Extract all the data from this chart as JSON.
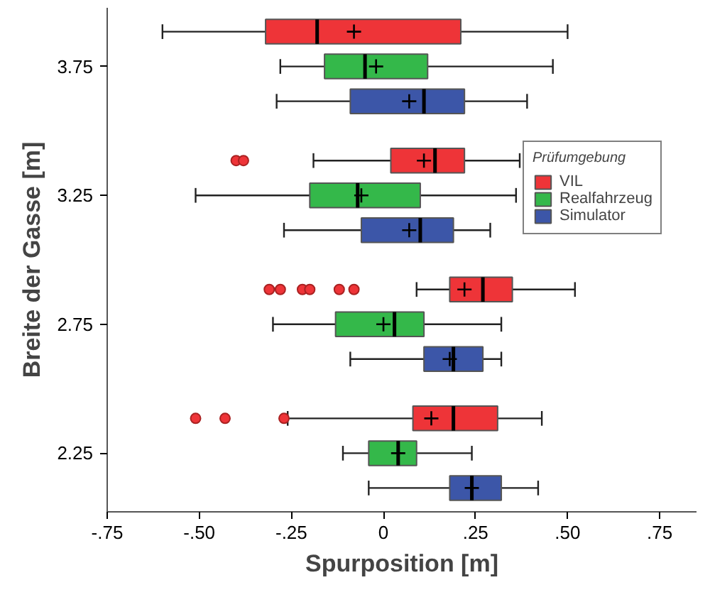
{
  "chart_data": {
    "type": "box",
    "orientation": "horizontal",
    "xlabel": "Spurposition [m]",
    "ylabel": "Breite der Gasse [m]",
    "legend_title": "Prüfumgebung",
    "legend": "right",
    "grid": false,
    "categories": [
      "3.75",
      "3.25",
      "2.75",
      "2.25"
    ],
    "xlim": [
      -0.75,
      0.85
    ],
    "xticks": [
      {
        "value": -0.75,
        "label": "-.75"
      },
      {
        "value": -0.5,
        "label": "-.50"
      },
      {
        "value": -0.25,
        "label": "-.25"
      },
      0,
      {
        "value": 0.25,
        "label": ".25"
      },
      {
        "value": 0.5,
        "label": ".50"
      },
      {
        "value": 0.75,
        "label": ".75"
      }
    ],
    "series": [
      {
        "name": "VIL",
        "color": "#ee3438",
        "boxes": [
          {
            "low": -0.6,
            "q1": -0.32,
            "median": -0.18,
            "q3": 0.21,
            "high": 0.5,
            "mean": -0.08
          },
          {
            "low": -0.19,
            "q1": 0.02,
            "median": 0.14,
            "q3": 0.22,
            "high": 0.37,
            "mean": 0.11,
            "outliers": [
              -0.4,
              -0.38
            ]
          },
          {
            "low": 0.09,
            "q1": 0.18,
            "median": 0.27,
            "q3": 0.35,
            "high": 0.52,
            "mean": 0.22,
            "outliers": [
              -0.31,
              -0.28,
              -0.22,
              -0.2,
              -0.12,
              -0.08
            ]
          },
          {
            "low": -0.26,
            "q1": 0.08,
            "median": 0.19,
            "q3": 0.31,
            "high": 0.43,
            "mean": 0.13,
            "outliers": [
              -0.51,
              -0.43,
              -0.27
            ]
          }
        ]
      },
      {
        "name": "Realfahrzeug",
        "color": "#34b84a",
        "boxes": [
          {
            "low": -0.28,
            "q1": -0.16,
            "median": -0.05,
            "q3": 0.12,
            "high": 0.46,
            "mean": -0.02
          },
          {
            "low": -0.51,
            "q1": -0.2,
            "median": -0.07,
            "q3": 0.1,
            "high": 0.36,
            "mean": -0.06
          },
          {
            "low": -0.3,
            "q1": -0.13,
            "median": 0.03,
            "q3": 0.11,
            "high": 0.32,
            "mean": 0.0
          },
          {
            "low": -0.11,
            "q1": -0.04,
            "median": 0.04,
            "q3": 0.09,
            "high": 0.24,
            "mean": 0.04
          }
        ]
      },
      {
        "name": "Simulator",
        "color": "#3c56a8",
        "boxes": [
          {
            "low": -0.29,
            "q1": -0.09,
            "median": 0.11,
            "q3": 0.22,
            "high": 0.39,
            "mean": 0.07
          },
          {
            "low": -0.27,
            "q1": -0.06,
            "median": 0.1,
            "q3": 0.19,
            "high": 0.29,
            "mean": 0.07
          },
          {
            "low": -0.09,
            "q1": 0.11,
            "median": 0.19,
            "q3": 0.27,
            "high": 0.32,
            "mean": 0.18
          },
          {
            "low": -0.04,
            "q1": 0.18,
            "median": 0.24,
            "q3": 0.32,
            "high": 0.42,
            "mean": 0.24
          }
        ]
      }
    ]
  }
}
